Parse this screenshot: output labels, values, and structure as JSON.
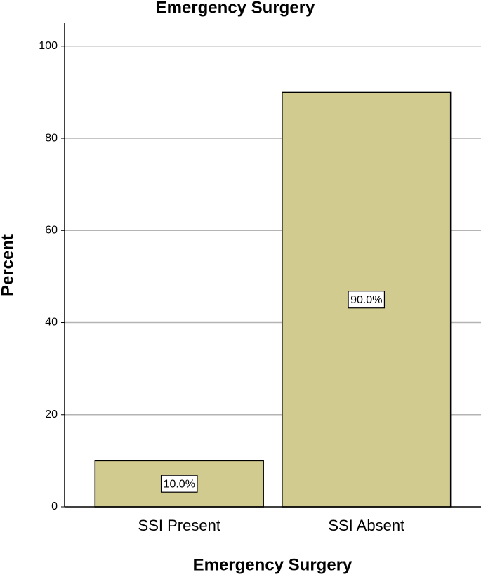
{
  "chart_data": {
    "type": "bar",
    "title": "Emergency Surgery",
    "x_label": "Emergency Surgery",
    "y_label": "Percent",
    "categories": [
      "SSI Present",
      "SSI Absent"
    ],
    "values": [
      10.0,
      90.0
    ],
    "value_labels": [
      "10.0%",
      "90.0%"
    ],
    "color": "#d1cb8f",
    "ylim": [
      0,
      105
    ],
    "yticks": [
      0,
      20,
      40,
      60,
      80,
      100
    ],
    "grid": true
  }
}
